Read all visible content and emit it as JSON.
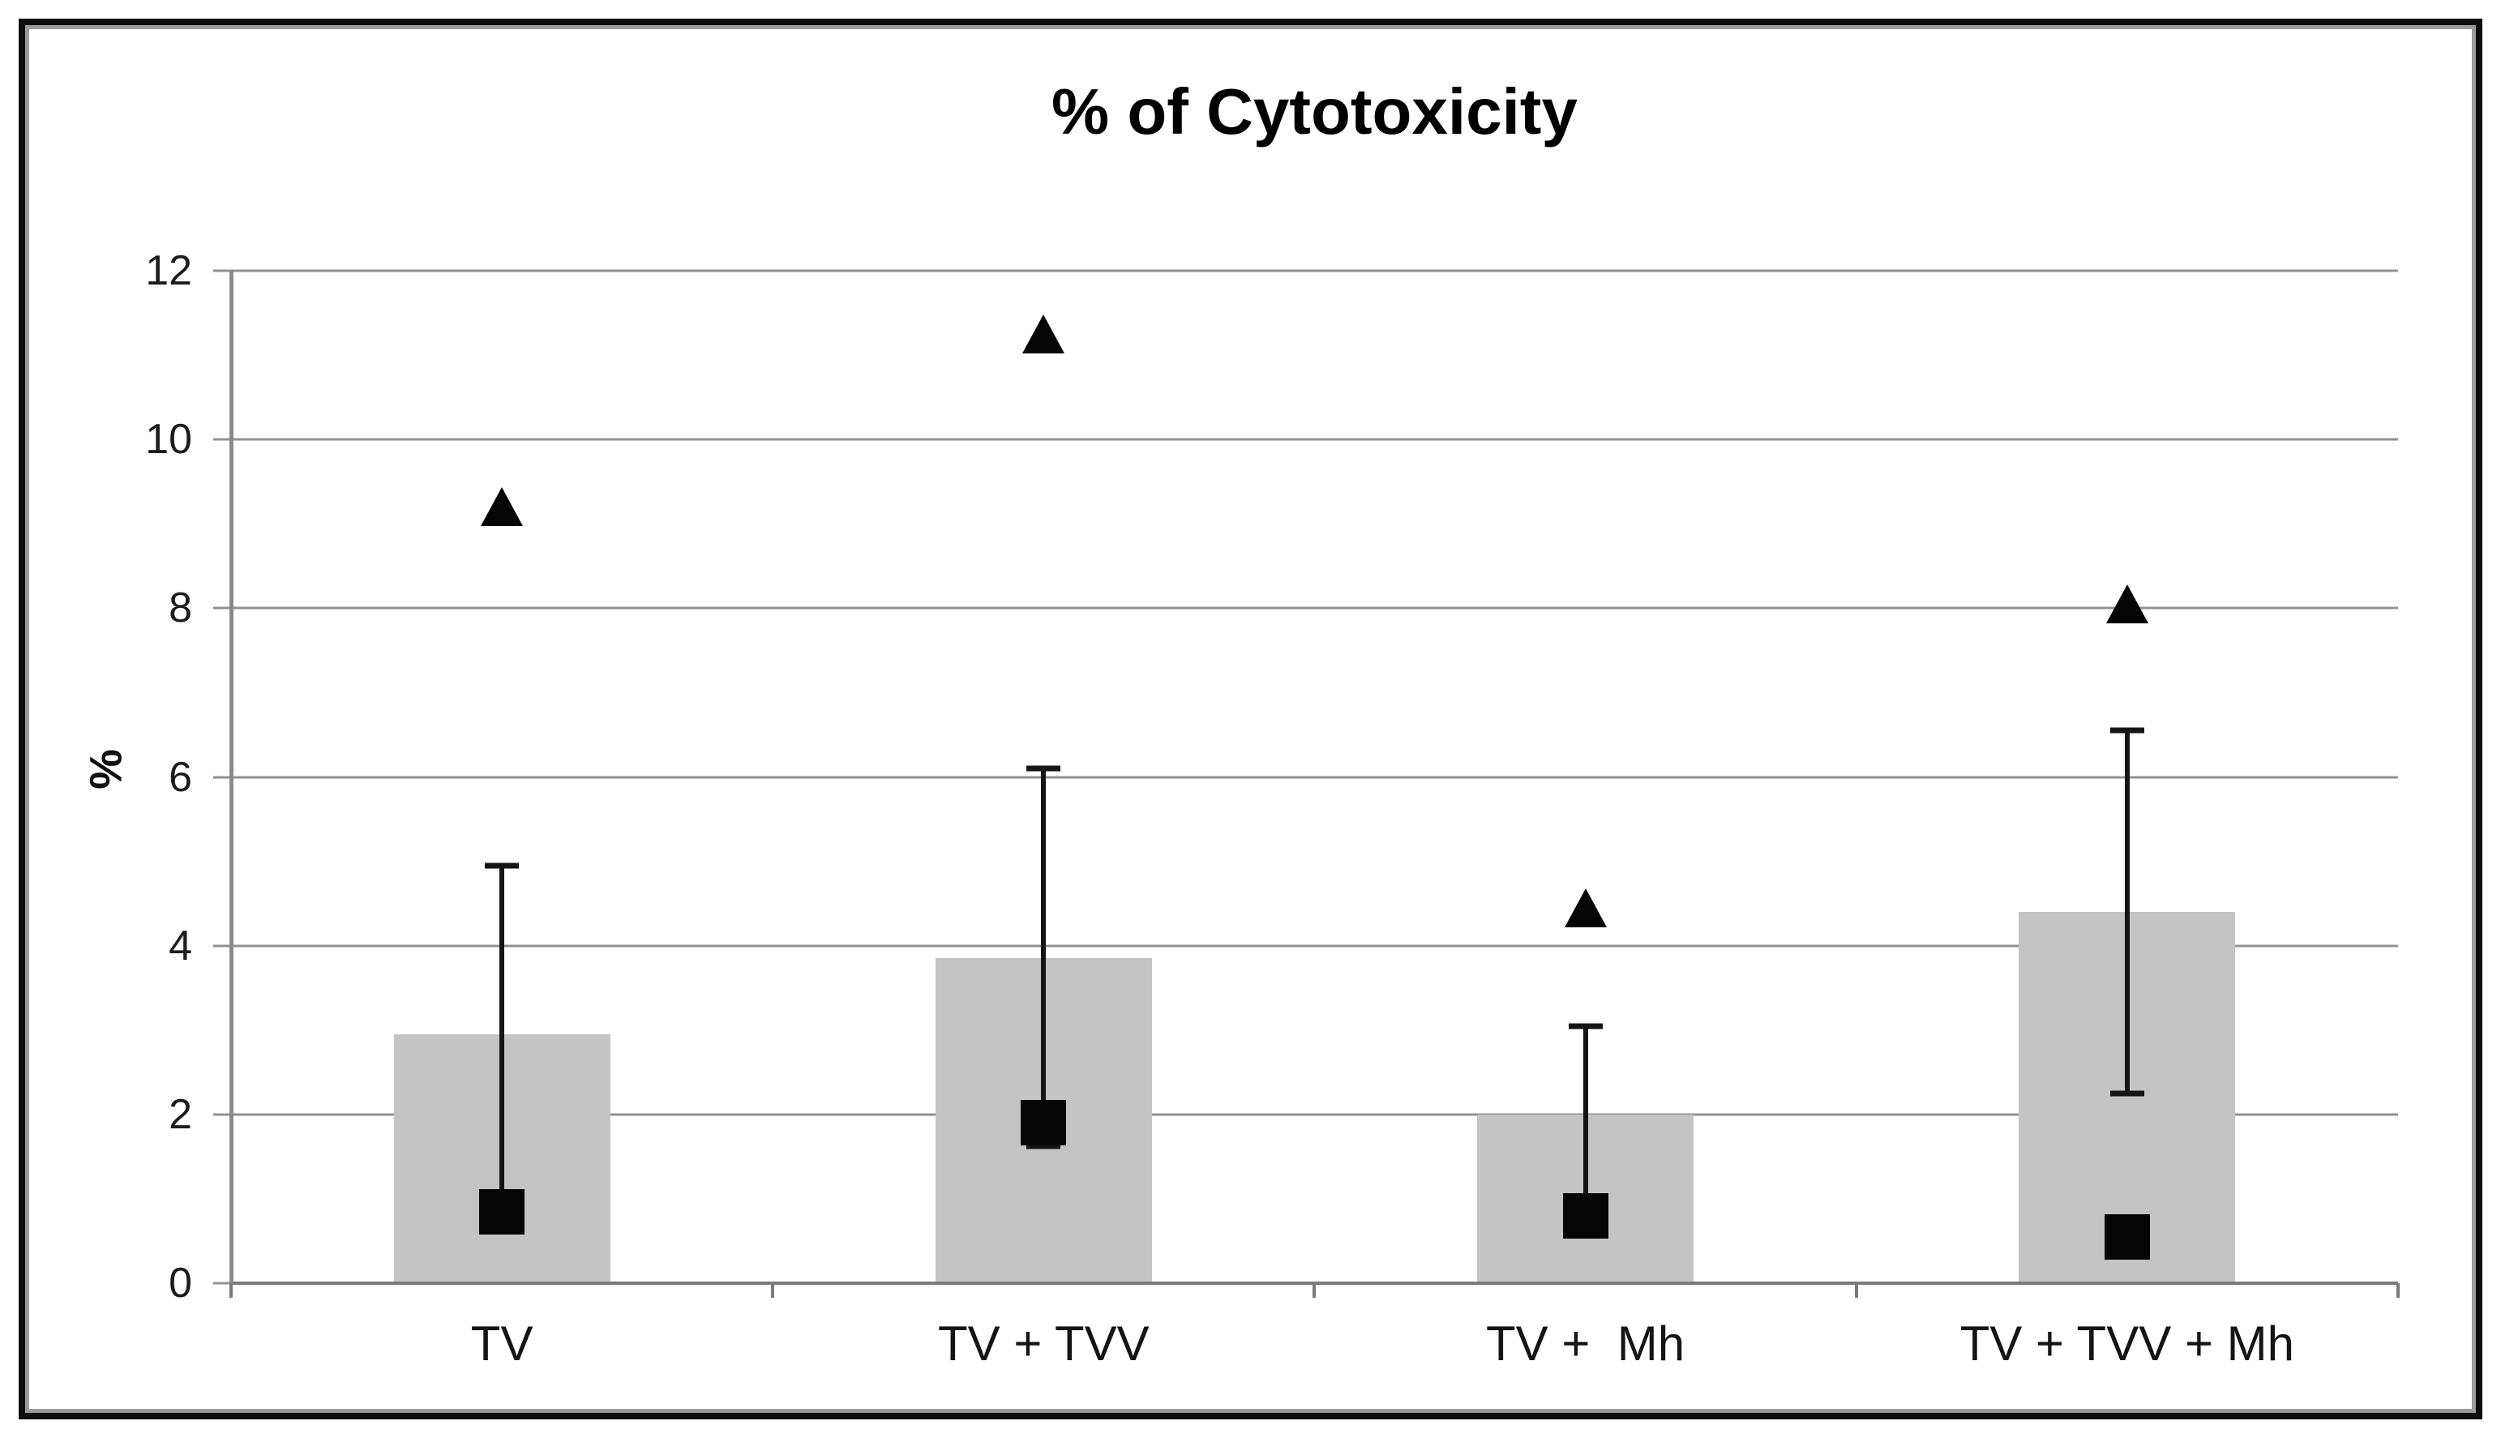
{
  "chart_data": {
    "type": "bar",
    "title": "% of Cytotoxicity",
    "xlabel": "",
    "ylabel": "%",
    "ylim": [
      0,
      12
    ],
    "yticks": [
      0,
      2,
      4,
      6,
      8,
      10,
      12
    ],
    "grid": "horizontal",
    "legend": "none",
    "categories": [
      "TV",
      "TV + TVV",
      "TV +  Mh",
      "TV + TVV + Mh"
    ],
    "series": [
      {
        "name": "mean-cytotoxicity-bar",
        "type": "bar",
        "marker": "none",
        "color": "#c4c4c4",
        "values": [
          2.95,
          3.85,
          2.0,
          4.4
        ]
      },
      {
        "name": "upper-scatter-triangle",
        "type": "scatter",
        "marker": "triangle",
        "color": "#050505",
        "values": [
          9.2,
          11.25,
          4.45,
          8.05
        ]
      },
      {
        "name": "lower-scatter-square",
        "type": "scatter",
        "marker": "square",
        "color": "#050505",
        "values": [
          0.85,
          1.9,
          0.8,
          0.55
        ]
      }
    ],
    "error_bars": {
      "upper": [
        4.95,
        6.1,
        3.05,
        6.55
      ],
      "lower": [
        0.95,
        1.62,
        0.95,
        2.25
      ]
    }
  },
  "colors": {
    "background": "#ffffff",
    "bar_fill": "#c4c4c4",
    "gridline": "#919191",
    "axis": "#7a7a7a",
    "marker": "#050505",
    "frame_border": "#0d0d0d",
    "frame_inner_line": "#9b9b9b",
    "text": "#141414"
  }
}
